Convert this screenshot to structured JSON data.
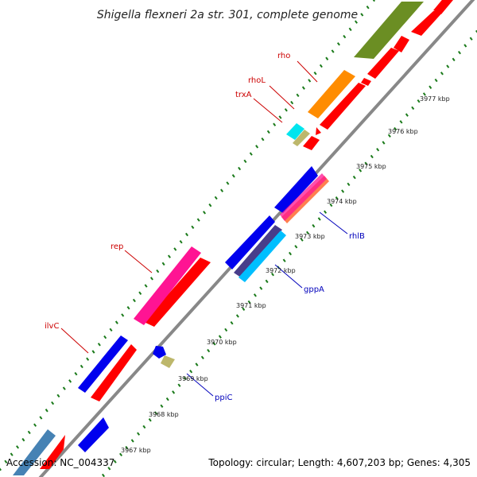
{
  "title": "Shigella flexneri 2a str. 301, complete genome",
  "footer": {
    "accession": "Accession: NC_004337",
    "summary": "Topology: circular; Length: 4,607,203 bp; Genes: 4,305"
  },
  "ticks": [
    "3967 kbp",
    "3968 kbp",
    "3969 kbp",
    "3970 kbp",
    "3971 kbp",
    "3972 kbp",
    "3973 kbp",
    "3974 kbp",
    "3975 kbp",
    "3976 kbp",
    "3977 kbp"
  ],
  "genes": {
    "rho": "rho",
    "rhoL": "rhoL",
    "trxA": "trxA",
    "rep": "rep",
    "ilvC": "ilvC",
    "rhlB": "rhlB",
    "gppA": "gppA",
    "ppiC": "ppiC"
  },
  "colors": {
    "forward_label": "#cc0000",
    "reverse_label": "#0000bb",
    "backbone": "#888888",
    "tick_dots": "#1a7a1a",
    "cds_forward": "#ff0000",
    "cds_reverse": "#0000ee",
    "rho": "#ff8c00",
    "trxA": "#00e5ee",
    "rep": "#ff1493",
    "olive": "#6b8e23",
    "khaki": "#bdb76b",
    "steelblue": "#4682b4",
    "slate": "#483d8b",
    "sky": "#00bfff"
  }
}
